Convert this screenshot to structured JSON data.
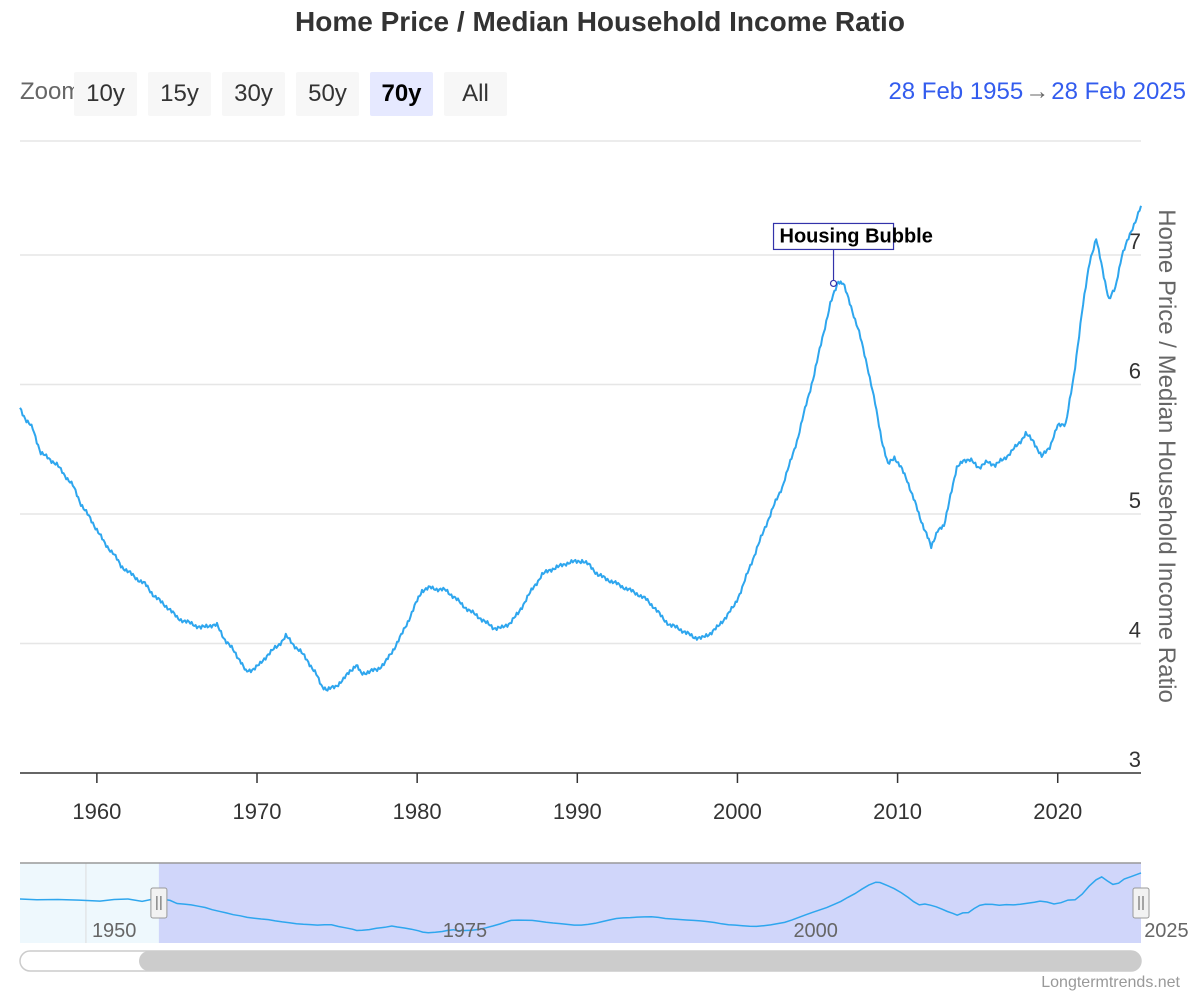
{
  "title": "Home Price / Median Household Income Ratio",
  "zoom": {
    "label": "Zoom",
    "buttons": [
      "10y",
      "15y",
      "30y",
      "50y",
      "70y",
      "All"
    ],
    "selected": "70y"
  },
  "range": {
    "from": "28 Feb 1955",
    "to": "28 Feb 2025"
  },
  "credit": "Longtermtrends.net",
  "colors": {
    "series": "#2ea6ee",
    "accent": "#335cee",
    "navigator_mask": "#d0d6fa",
    "navigator_fill": "#eef8fd",
    "annotation_border": "#3333aa"
  },
  "chart_data": {
    "type": "line",
    "title": "Home Price / Median Household Income Ratio",
    "xlabel": "",
    "ylabel": "Home Price / Median Household Income Ratio",
    "xlim": [
      1955.2,
      2025.2
    ],
    "ylim": [
      3,
      8
    ],
    "x_ticks": [
      1960,
      1970,
      1980,
      1990,
      2000,
      2010,
      2020
    ],
    "y_ticks": [
      3,
      4,
      5,
      6,
      7
    ],
    "grid": true,
    "legend": "none",
    "y_axis_position": "right",
    "series": [
      {
        "points": [
          [
            1955.2,
            5.82
          ],
          [
            1955.6,
            5.72
          ],
          [
            1956.0,
            5.66
          ],
          [
            1956.5,
            5.47
          ],
          [
            1957.0,
            5.43
          ],
          [
            1957.5,
            5.38
          ],
          [
            1958.0,
            5.3
          ],
          [
            1958.5,
            5.22
          ],
          [
            1959.0,
            5.08
          ],
          [
            1959.5,
            4.98
          ],
          [
            1960.0,
            4.88
          ],
          [
            1960.5,
            4.77
          ],
          [
            1961.0,
            4.7
          ],
          [
            1961.5,
            4.6
          ],
          [
            1962.0,
            4.55
          ],
          [
            1962.5,
            4.5
          ],
          [
            1963.0,
            4.46
          ],
          [
            1963.5,
            4.38
          ],
          [
            1964.0,
            4.32
          ],
          [
            1964.5,
            4.27
          ],
          [
            1965.0,
            4.2
          ],
          [
            1965.5,
            4.17
          ],
          [
            1966.0,
            4.15
          ],
          [
            1966.5,
            4.12
          ],
          [
            1967.0,
            4.14
          ],
          [
            1967.5,
            4.14
          ],
          [
            1968.0,
            4.03
          ],
          [
            1968.5,
            3.95
          ],
          [
            1969.0,
            3.86
          ],
          [
            1969.3,
            3.78
          ],
          [
            1969.7,
            3.8
          ],
          [
            1970.2,
            3.84
          ],
          [
            1970.7,
            3.92
          ],
          [
            1971.3,
            3.98
          ],
          [
            1971.8,
            4.06
          ],
          [
            1972.2,
            4.0
          ],
          [
            1972.7,
            3.94
          ],
          [
            1973.2,
            3.86
          ],
          [
            1973.7,
            3.76
          ],
          [
            1974.0,
            3.68
          ],
          [
            1974.4,
            3.64
          ],
          [
            1974.9,
            3.67
          ],
          [
            1975.4,
            3.72
          ],
          [
            1975.8,
            3.79
          ],
          [
            1976.2,
            3.83
          ],
          [
            1976.5,
            3.77
          ],
          [
            1977.0,
            3.78
          ],
          [
            1977.5,
            3.8
          ],
          [
            1978.0,
            3.85
          ],
          [
            1978.5,
            3.95
          ],
          [
            1979.0,
            4.06
          ],
          [
            1979.5,
            4.19
          ],
          [
            1980.0,
            4.33
          ],
          [
            1980.3,
            4.41
          ],
          [
            1980.8,
            4.43
          ],
          [
            1981.3,
            4.42
          ],
          [
            1981.8,
            4.41
          ],
          [
            1982.3,
            4.36
          ],
          [
            1982.8,
            4.3
          ],
          [
            1983.3,
            4.25
          ],
          [
            1983.8,
            4.21
          ],
          [
            1984.3,
            4.16
          ],
          [
            1984.8,
            4.12
          ],
          [
            1985.3,
            4.12
          ],
          [
            1985.8,
            4.16
          ],
          [
            1986.3,
            4.23
          ],
          [
            1986.8,
            4.34
          ],
          [
            1987.3,
            4.44
          ],
          [
            1987.8,
            4.53
          ],
          [
            1988.3,
            4.57
          ],
          [
            1988.8,
            4.59
          ],
          [
            1989.3,
            4.62
          ],
          [
            1989.8,
            4.63
          ],
          [
            1990.3,
            4.64
          ],
          [
            1990.8,
            4.6
          ],
          [
            1991.3,
            4.53
          ],
          [
            1991.8,
            4.5
          ],
          [
            1992.3,
            4.47
          ],
          [
            1992.8,
            4.44
          ],
          [
            1993.3,
            4.41
          ],
          [
            1993.8,
            4.38
          ],
          [
            1994.3,
            4.34
          ],
          [
            1994.8,
            4.28
          ],
          [
            1995.3,
            4.2
          ],
          [
            1995.8,
            4.14
          ],
          [
            1996.3,
            4.12
          ],
          [
            1996.8,
            4.08
          ],
          [
            1997.3,
            4.05
          ],
          [
            1997.8,
            4.04
          ],
          [
            1998.3,
            4.08
          ],
          [
            1998.8,
            4.13
          ],
          [
            1999.3,
            4.21
          ],
          [
            1999.8,
            4.29
          ],
          [
            2000.3,
            4.43
          ],
          [
            2000.8,
            4.6
          ],
          [
            2001.3,
            4.76
          ],
          [
            2001.8,
            4.92
          ],
          [
            2002.3,
            5.07
          ],
          [
            2002.8,
            5.21
          ],
          [
            2003.3,
            5.4
          ],
          [
            2003.8,
            5.6
          ],
          [
            2004.3,
            5.85
          ],
          [
            2004.8,
            6.08
          ],
          [
            2005.3,
            6.36
          ],
          [
            2005.8,
            6.62
          ],
          [
            2006.3,
            6.8
          ],
          [
            2006.6,
            6.78
          ],
          [
            2007.1,
            6.6
          ],
          [
            2007.6,
            6.4
          ],
          [
            2008.1,
            6.15
          ],
          [
            2008.6,
            5.85
          ],
          [
            2009.0,
            5.58
          ],
          [
            2009.4,
            5.38
          ],
          [
            2009.8,
            5.44
          ],
          [
            2010.2,
            5.36
          ],
          [
            2010.6,
            5.26
          ],
          [
            2011.0,
            5.12
          ],
          [
            2011.4,
            4.97
          ],
          [
            2011.8,
            4.85
          ],
          [
            2012.1,
            4.74
          ],
          [
            2012.5,
            4.88
          ],
          [
            2012.9,
            4.9
          ],
          [
            2013.3,
            5.15
          ],
          [
            2013.7,
            5.35
          ],
          [
            2014.1,
            5.42
          ],
          [
            2014.6,
            5.41
          ],
          [
            2015.1,
            5.36
          ],
          [
            2015.6,
            5.4
          ],
          [
            2016.1,
            5.38
          ],
          [
            2016.6,
            5.42
          ],
          [
            2017.1,
            5.48
          ],
          [
            2017.6,
            5.55
          ],
          [
            2018.0,
            5.62
          ],
          [
            2018.5,
            5.56
          ],
          [
            2019.0,
            5.44
          ],
          [
            2019.5,
            5.52
          ],
          [
            2020.0,
            5.68
          ],
          [
            2020.5,
            5.7
          ],
          [
            2021.0,
            6.05
          ],
          [
            2021.5,
            6.55
          ],
          [
            2022.0,
            6.95
          ],
          [
            2022.4,
            7.13
          ],
          [
            2022.8,
            6.88
          ],
          [
            2023.2,
            6.66
          ],
          [
            2023.6,
            6.74
          ],
          [
            2024.0,
            7.0
          ],
          [
            2024.5,
            7.15
          ],
          [
            2025.2,
            7.38
          ]
        ]
      }
    ],
    "annotations": [
      {
        "x": 2006.0,
        "y": 6.78,
        "label": "Housing Bubble"
      }
    ],
    "navigator": {
      "xlim": [
        1945.3,
        2025.2
      ],
      "x_ticks": [
        1950,
        1975,
        2000,
        2025
      ],
      "selected_range": [
        1955.2,
        2025.2
      ],
      "preview_before": [
        [
          1945.3,
          5.75
        ],
        [
          1946.5,
          5.7
        ],
        [
          1948.0,
          5.72
        ],
        [
          1949.5,
          5.68
        ],
        [
          1951.0,
          5.62
        ],
        [
          1952.0,
          5.72
        ],
        [
          1953.0,
          5.75
        ],
        [
          1954.0,
          5.6
        ],
        [
          1955.2,
          5.82
        ]
      ]
    }
  }
}
